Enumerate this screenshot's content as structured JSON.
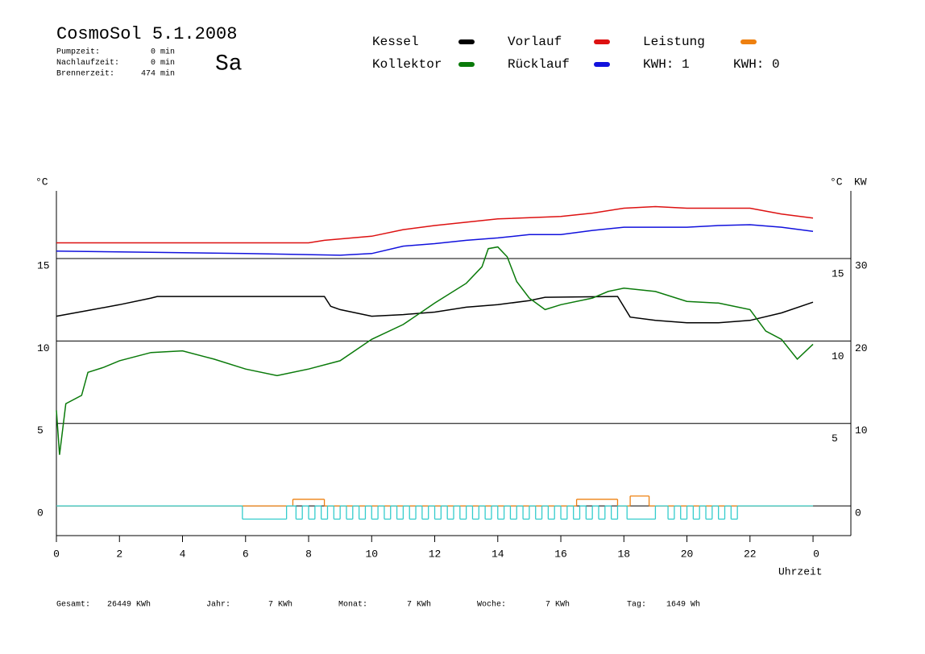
{
  "header": {
    "title": "CosmoSol 5.1.2008",
    "day": "Sa",
    "day_color": "#dd1111",
    "stats": [
      {
        "label": "Pumpzeit:",
        "value": "0 min"
      },
      {
        "label": "Nachlaufzeit:",
        "value": "0 min"
      },
      {
        "label": "Brennerzeit:",
        "value": "474 min"
      }
    ]
  },
  "footer": [
    {
      "label": "Gesamt:",
      "value": "26449 KWh"
    },
    {
      "label": "Jahr:",
      "value": "7 KWh"
    },
    {
      "label": "Monat:",
      "value": "7 KWh"
    },
    {
      "label": "Woche:",
      "value": "7 KWh"
    },
    {
      "label": "Tag:",
      "value": "1649 Wh"
    }
  ],
  "chart_data": {
    "type": "line",
    "y_label": "°C",
    "y2_label_left": "°C",
    "y2_label": "KW",
    "x_label": "Uhrzeit",
    "xlim": [
      0,
      25.2
    ],
    "xticks": [
      0,
      2,
      4,
      6,
      8,
      10,
      12,
      14,
      16,
      18,
      20,
      22,
      {
        "value": 24,
        "label": "0"
      }
    ],
    "ylim": [
      -1.8,
      19.1
    ],
    "yticks": [
      0,
      5,
      10,
      15
    ],
    "right_yticks": [
      15,
      10,
      5
    ],
    "y2lim": [
      -3.6,
      38.2
    ],
    "y2ticks": [
      0,
      10,
      20,
      30
    ],
    "y2_color": "#e08a10",
    "grid": true,
    "kwh_labels": [
      {
        "text": "KWH: 1",
        "color": "#e08a10"
      },
      {
        "text": "KWH: 0",
        "color": "#803080"
      }
    ],
    "series": [
      {
        "name": "Kessel",
        "color": "#000000",
        "x": [
          0,
          1,
          2,
          3,
          3.2,
          8.5,
          8.7,
          9,
          10,
          11,
          12,
          13,
          14,
          15,
          15.5,
          17.8,
          18.2,
          19,
          20,
          21,
          22,
          23,
          24
        ],
        "values": [
          11.5,
          11.85,
          12.2,
          12.6,
          12.7,
          12.7,
          12.1,
          11.9,
          11.5,
          11.6,
          11.75,
          12.05,
          12.2,
          12.45,
          12.65,
          12.7,
          11.45,
          11.25,
          11.1,
          11.1,
          11.25,
          11.7,
          12.35
        ]
      },
      {
        "name": "Kollektor",
        "color": "#0a7a0a",
        "x": [
          0,
          0.1,
          0.3,
          0.8,
          1,
          1.5,
          2,
          3,
          4,
          5,
          6,
          7,
          8,
          9,
          10,
          11,
          12,
          13,
          13.5,
          13.7,
          14,
          14.3,
          14.6,
          15,
          15.5,
          16,
          17,
          17.5,
          18,
          19,
          20,
          21,
          22,
          22.5,
          23,
          23.5,
          24
        ],
        "values": [
          5.8,
          3.1,
          6.2,
          6.7,
          8.1,
          8.4,
          8.8,
          9.3,
          9.4,
          8.9,
          8.3,
          7.9,
          8.3,
          8.8,
          10.1,
          11.0,
          12.3,
          13.5,
          14.5,
          15.6,
          15.7,
          15.1,
          13.6,
          12.6,
          11.9,
          12.2,
          12.6,
          13.0,
          13.2,
          13.0,
          12.4,
          12.3,
          11.9,
          10.6,
          10.1,
          8.9,
          9.8
        ]
      },
      {
        "name": "Vorlauf",
        "color": "#dd1111",
        "x": [
          0,
          8,
          8.5,
          10,
          11,
          12,
          13,
          14,
          16,
          17,
          18,
          19,
          20,
          22,
          23,
          24
        ],
        "values": [
          15.95,
          15.95,
          16.1,
          16.35,
          16.75,
          17.0,
          17.2,
          17.4,
          17.55,
          17.75,
          18.05,
          18.15,
          18.05,
          18.05,
          17.7,
          17.45
        ]
      },
      {
        "name": "Rücklauf",
        "color": "#1111dd",
        "x": [
          0,
          2,
          6,
          9,
          10,
          11,
          12,
          13,
          14,
          15,
          16,
          17,
          18,
          20,
          21,
          22,
          23,
          24
        ],
        "values": [
          15.45,
          15.4,
          15.3,
          15.2,
          15.3,
          15.75,
          15.9,
          16.1,
          16.25,
          16.45,
          16.45,
          16.7,
          16.9,
          16.9,
          17.0,
          17.05,
          16.9,
          16.65
        ]
      },
      {
        "name": "Leistung",
        "color": "#ee8010",
        "axis": "y2",
        "step": true,
        "x": [
          0,
          7.5,
          8.5,
          16.5,
          17.8,
          18.2,
          18.8,
          24
        ],
        "values": [
          0,
          0.8,
          0,
          0.8,
          0,
          1.2,
          0,
          0
        ]
      },
      {
        "color": "#33cccc",
        "step": true,
        "x": [
          0,
          5.9,
          7.3,
          7.6,
          7.8,
          8.0,
          8.2,
          8.4,
          8.6,
          8.8,
          9.0,
          9.2,
          9.4,
          9.6,
          9.8,
          10.0,
          10.2,
          10.4,
          10.6,
          10.8,
          11.0,
          11.2,
          11.4,
          11.6,
          11.8,
          12.0,
          12.2,
          12.4,
          12.6,
          12.8,
          13.0,
          13.2,
          13.4,
          13.6,
          13.8,
          14.0,
          14.2,
          14.4,
          14.6,
          14.8,
          15.0,
          15.2,
          15.4,
          15.6,
          15.8,
          16.0,
          16.2,
          16.4,
          16.6,
          16.8,
          17.0,
          17.2,
          17.4,
          17.6,
          17.8,
          18.1,
          19.0,
          19.4,
          19.6,
          19.8,
          20.0,
          20.2,
          20.4,
          20.6,
          20.8,
          21.0,
          21.2,
          21.4,
          21.6,
          24
        ],
        "values": [
          0,
          -0.8,
          0,
          -0.8,
          0,
          -0.8,
          0,
          -0.8,
          0,
          -0.8,
          0,
          -0.8,
          0,
          -0.8,
          0,
          -0.8,
          0,
          -0.8,
          0,
          -0.8,
          0,
          -0.8,
          0,
          -0.8,
          0,
          -0.8,
          0,
          -0.8,
          0,
          -0.8,
          0,
          -0.8,
          0,
          -0.8,
          0,
          -0.8,
          0,
          -0.8,
          0,
          -0.8,
          0,
          -0.8,
          0,
          -0.8,
          0,
          -0.8,
          0,
          -0.8,
          0,
          -0.8,
          0,
          -0.8,
          0,
          -0.8,
          0,
          -0.8,
          0,
          -0.8,
          0,
          -0.8,
          0,
          -0.8,
          0,
          -0.8,
          0,
          -0.8,
          0,
          -0.8,
          0,
          0
        ]
      }
    ]
  }
}
